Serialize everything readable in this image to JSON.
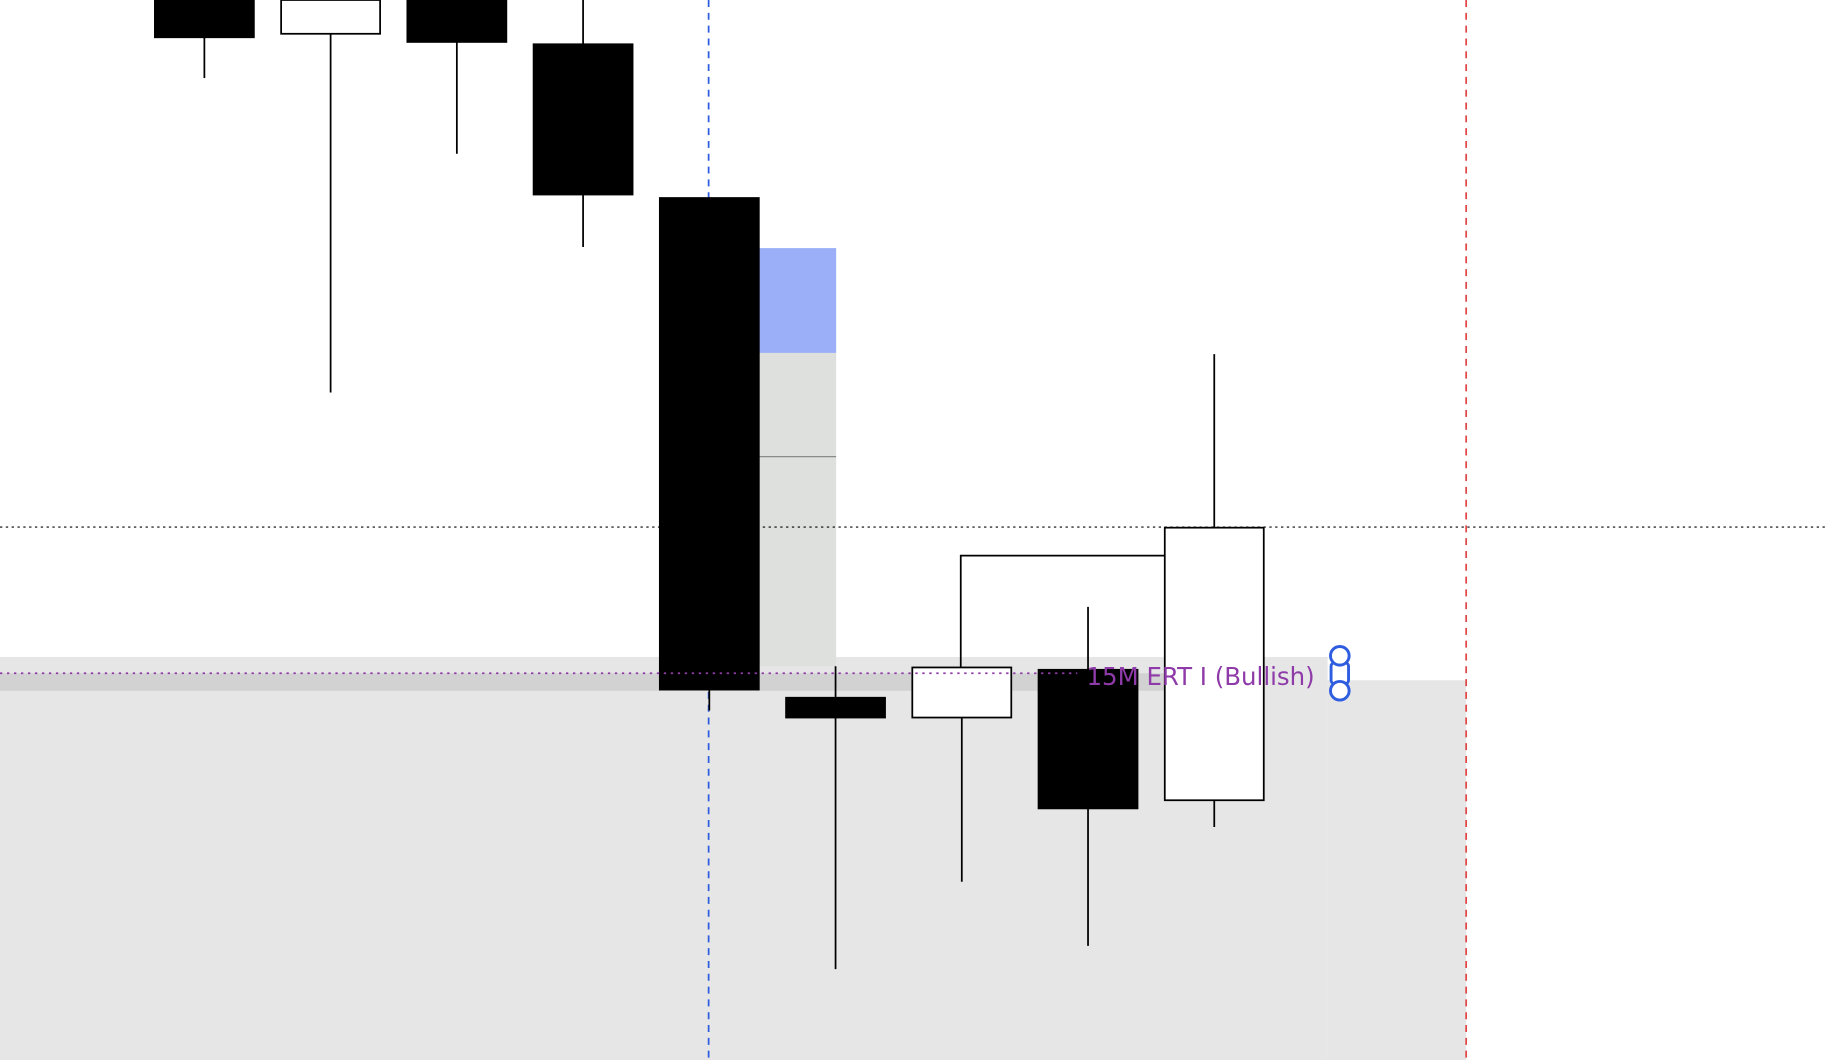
{
  "chart_data": {
    "type": "candlestick",
    "candles": [
      {
        "open": 910,
        "close": 878,
        "high": 910,
        "low": 843
      },
      {
        "open": 881,
        "close": 910,
        "high": 910,
        "low": 573
      },
      {
        "open": 910,
        "close": 874,
        "high": 910,
        "low": 778
      },
      {
        "open": 872,
        "close": 743,
        "high": 910,
        "low": 698
      },
      {
        "open": 740,
        "close": 318,
        "high": 740,
        "low": 300
      },
      {
        "open": 311,
        "close": 294,
        "high": 338,
        "low": 78
      },
      {
        "open": 294,
        "close": 337,
        "high": 337,
        "low": 153
      },
      {
        "open": 335,
        "close": 216,
        "high": 389,
        "low": 98
      },
      {
        "open": 223,
        "close": 457,
        "high": 606,
        "low": 200
      }
    ],
    "annotation": {
      "text": "15M ERT I (Bullish)",
      "color": "#8e3aa8"
    },
    "colors": {
      "bear": "#000000",
      "bull": "#ffffff",
      "session_line": "#2f5de0",
      "end_line": "#e04848",
      "zone_upper": "#9aaff7",
      "zone_lower": "#dde0dc",
      "range_shade": "#e6e6e6"
    },
    "grid": false,
    "axes": "none"
  }
}
